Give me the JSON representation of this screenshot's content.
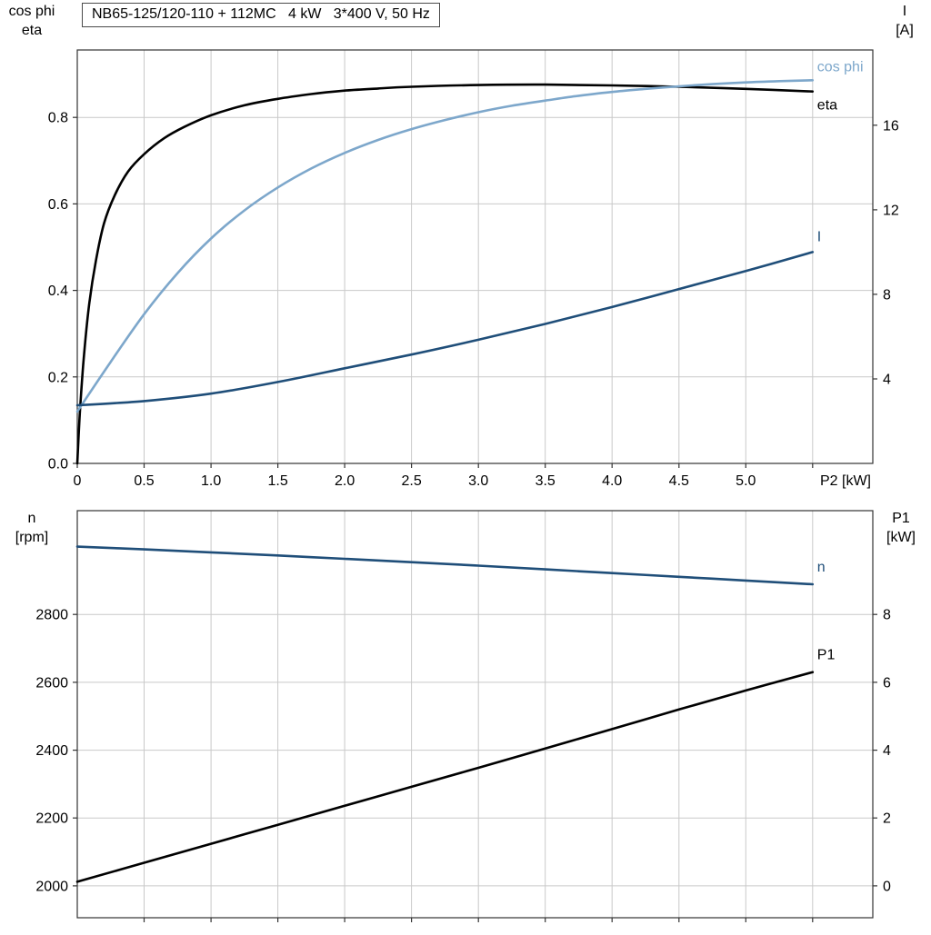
{
  "title_box": {
    "text": "NB65-125/120-110 + 112MC   4 kW   3*400 V, 50 Hz"
  },
  "colors": {
    "black": "#000000",
    "dark_blue": "#1f4e79",
    "light_blue": "#7da7cb",
    "grid": "#c9c9c9",
    "frame": "#333333"
  },
  "chart_data": [
    {
      "id": "p2-curves",
      "type": "line",
      "corner_labels": {
        "left": [
          "cos phi",
          "eta"
        ],
        "right": [
          "I",
          "[A]"
        ]
      },
      "x_unit": "P2 [kW]",
      "xlim": [
        0,
        5.95
      ],
      "x_ticks": [
        {
          "v": 0,
          "label": "0"
        },
        {
          "v": 0.5,
          "label": "0.5"
        },
        {
          "v": 1,
          "label": "1.0"
        },
        {
          "v": 1.5,
          "label": "1.5"
        },
        {
          "v": 2,
          "label": "2.0"
        },
        {
          "v": 2.5,
          "label": "2.5"
        },
        {
          "v": 3,
          "label": "3.0"
        },
        {
          "v": 3.5,
          "label": "3.5"
        },
        {
          "v": 4,
          "label": "4.0"
        },
        {
          "v": 4.5,
          "label": "4.5"
        },
        {
          "v": 5,
          "label": "5.0"
        },
        {
          "v": 5.5,
          "label": ""
        }
      ],
      "left_ylim": [
        0,
        0.956
      ],
      "left_ticks": [
        {
          "v": 0,
          "label": "0.0"
        },
        {
          "v": 0.2,
          "label": "0.2"
        },
        {
          "v": 0.4,
          "label": "0.4"
        },
        {
          "v": 0.6,
          "label": "0.6"
        },
        {
          "v": 0.8,
          "label": "0.8"
        }
      ],
      "right_ylim": [
        0,
        19.56
      ],
      "right_ticks": [
        {
          "v": 4,
          "label": "4"
        },
        {
          "v": 8,
          "label": "8"
        },
        {
          "v": 12,
          "label": "12"
        },
        {
          "v": 16,
          "label": "16"
        }
      ],
      "grid": true,
      "series": [
        {
          "name": "eta",
          "label": "eta",
          "axis": "left",
          "color": "#000000",
          "label_dx": 5,
          "label_dy": 20,
          "points": [
            [
              0,
              0
            ],
            [
              0.02,
              0.12
            ],
            [
              0.05,
              0.25
            ],
            [
              0.09,
              0.37
            ],
            [
              0.14,
              0.47
            ],
            [
              0.2,
              0.555
            ],
            [
              0.28,
              0.62
            ],
            [
              0.38,
              0.675
            ],
            [
              0.5,
              0.715
            ],
            [
              0.65,
              0.752
            ],
            [
              0.8,
              0.778
            ],
            [
              1.0,
              0.805
            ],
            [
              1.25,
              0.828
            ],
            [
              1.5,
              0.843
            ],
            [
              1.75,
              0.854
            ],
            [
              2.0,
              0.862
            ],
            [
              2.25,
              0.867
            ],
            [
              2.5,
              0.871
            ],
            [
              3.0,
              0.875
            ],
            [
              3.5,
              0.876
            ],
            [
              4.0,
              0.874
            ],
            [
              4.5,
              0.871
            ],
            [
              5.0,
              0.866
            ],
            [
              5.5,
              0.86
            ]
          ]
        },
        {
          "name": "cos_phi",
          "label": "cos phi",
          "axis": "left",
          "color": "#7da7cb",
          "label_dx": 5,
          "label_dy": -10,
          "points": [
            [
              0,
              0.12
            ],
            [
              0.25,
              0.235
            ],
            [
              0.5,
              0.345
            ],
            [
              0.75,
              0.44
            ],
            [
              1.0,
              0.52
            ],
            [
              1.25,
              0.585
            ],
            [
              1.5,
              0.638
            ],
            [
              1.75,
              0.682
            ],
            [
              2.0,
              0.718
            ],
            [
              2.25,
              0.748
            ],
            [
              2.5,
              0.773
            ],
            [
              2.75,
              0.794
            ],
            [
              3.0,
              0.812
            ],
            [
              3.25,
              0.827
            ],
            [
              3.5,
              0.839
            ],
            [
              3.75,
              0.85
            ],
            [
              4.0,
              0.859
            ],
            [
              4.25,
              0.866
            ],
            [
              4.5,
              0.872
            ],
            [
              4.75,
              0.877
            ],
            [
              5.0,
              0.881
            ],
            [
              5.25,
              0.884
            ],
            [
              5.5,
              0.886
            ]
          ]
        },
        {
          "name": "I",
          "label": "I",
          "axis": "right",
          "color": "#1f4e79",
          "label_dx": 5,
          "label_dy": -12,
          "points": [
            [
              0,
              2.75
            ],
            [
              0.5,
              2.95
            ],
            [
              1.0,
              3.3
            ],
            [
              1.5,
              3.85
            ],
            [
              2.0,
              4.5
            ],
            [
              2.5,
              5.15
            ],
            [
              3.0,
              5.85
            ],
            [
              3.5,
              6.6
            ],
            [
              4.0,
              7.4
            ],
            [
              4.5,
              8.25
            ],
            [
              5.0,
              9.1
            ],
            [
              5.5,
              10.0
            ]
          ]
        }
      ]
    },
    {
      "id": "n-p1-curves",
      "type": "line",
      "corner_labels": {
        "left": [
          "n",
          "[rpm]"
        ],
        "right": [
          "P1",
          "[kW]"
        ]
      },
      "x_unit": "",
      "xlim": [
        0,
        5.95
      ],
      "x_ticks": [
        {
          "v": 0.5,
          "label": ""
        },
        {
          "v": 1,
          "label": ""
        },
        {
          "v": 1.5,
          "label": ""
        },
        {
          "v": 2,
          "label": ""
        },
        {
          "v": 2.5,
          "label": ""
        },
        {
          "v": 3,
          "label": ""
        },
        {
          "v": 3.5,
          "label": ""
        },
        {
          "v": 4,
          "label": ""
        },
        {
          "v": 4.5,
          "label": ""
        },
        {
          "v": 5,
          "label": ""
        },
        {
          "v": 5.5,
          "label": ""
        }
      ],
      "left_ylim": [
        1906,
        3106
      ],
      "left_ticks": [
        {
          "v": 2000,
          "label": "2000"
        },
        {
          "v": 2200,
          "label": "2200"
        },
        {
          "v": 2400,
          "label": "2400"
        },
        {
          "v": 2600,
          "label": "2600"
        },
        {
          "v": 2800,
          "label": "2800"
        }
      ],
      "right_ylim": [
        -0.94,
        11.06
      ],
      "right_ticks": [
        {
          "v": 0,
          "label": "0"
        },
        {
          "v": 2,
          "label": "2"
        },
        {
          "v": 4,
          "label": "4"
        },
        {
          "v": 6,
          "label": "6"
        },
        {
          "v": 8,
          "label": "8"
        }
      ],
      "grid": true,
      "series": [
        {
          "name": "n",
          "label": "n",
          "axis": "left",
          "color": "#1f4e79",
          "label_dx": 5,
          "label_dy": -14,
          "points": [
            [
              0,
              3000
            ],
            [
              0.5,
              2992
            ],
            [
              1.0,
              2983
            ],
            [
              1.5,
              2974
            ],
            [
              2.0,
              2964
            ],
            [
              2.5,
              2954
            ],
            [
              3.0,
              2944
            ],
            [
              3.5,
              2933
            ],
            [
              4.0,
              2922
            ],
            [
              4.5,
              2911
            ],
            [
              5.0,
              2900
            ],
            [
              5.5,
              2889
            ]
          ]
        },
        {
          "name": "P1",
          "label": "P1",
          "axis": "right",
          "color": "#000000",
          "label_dx": 5,
          "label_dy": -14,
          "points": [
            [
              0,
              0.12
            ],
            [
              0.5,
              0.68
            ],
            [
              1.0,
              1.24
            ],
            [
              1.5,
              1.8
            ],
            [
              2.0,
              2.36
            ],
            [
              2.5,
              2.92
            ],
            [
              3.0,
              3.48
            ],
            [
              3.5,
              4.05
            ],
            [
              4.0,
              4.62
            ],
            [
              4.5,
              5.2
            ],
            [
              5.0,
              5.76
            ],
            [
              5.5,
              6.3
            ]
          ]
        }
      ]
    }
  ]
}
